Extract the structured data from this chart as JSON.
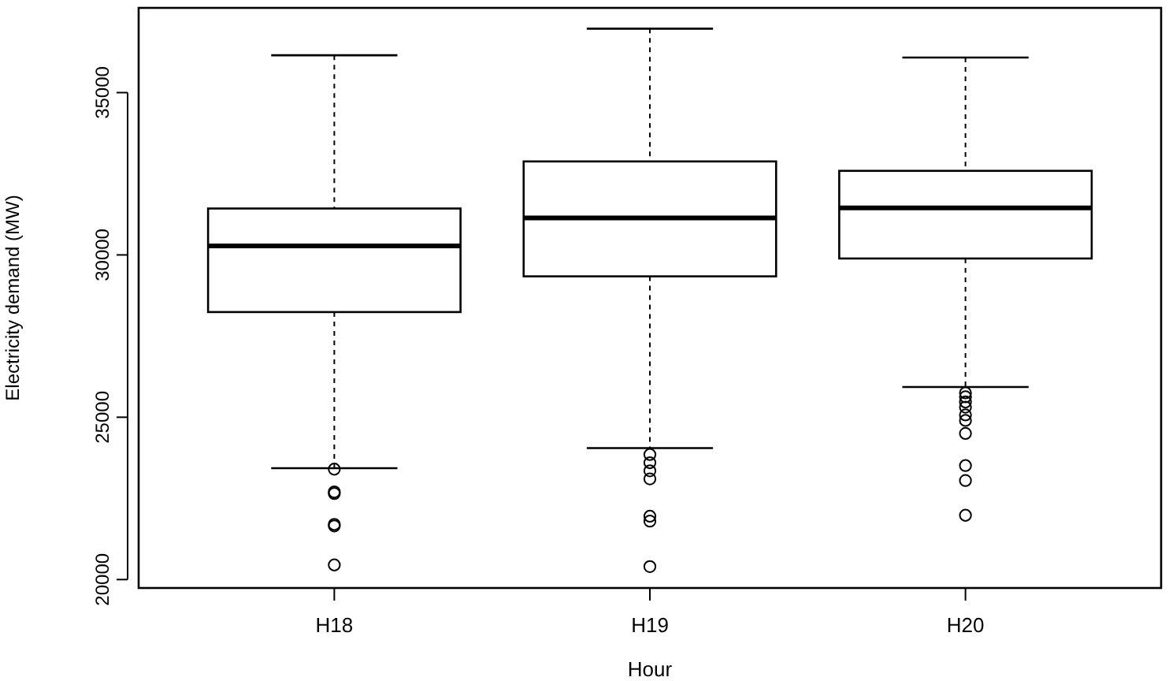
{
  "chart_data": {
    "type": "box",
    "xlabel": "Hour",
    "ylabel": "Electricity demand (MW)",
    "categories": [
      "H18",
      "H19",
      "H20"
    ],
    "ylim": [
      19740,
      37610
    ],
    "yticks": [
      20000,
      25000,
      30000,
      35000
    ],
    "marker": "circle",
    "grid": false,
    "boxes": [
      {
        "low": 23430,
        "q1": 28240,
        "median": 30280,
        "q3": 31430,
        "high": 36150,
        "outliers": [
          23400,
          22700,
          22650,
          21700,
          21650,
          20450
        ]
      },
      {
        "low": 24050,
        "q1": 29340,
        "median": 31140,
        "q3": 32880,
        "high": 36970,
        "outliers": [
          23850,
          23600,
          23350,
          23100,
          21950,
          21800,
          20400
        ]
      },
      {
        "low": 25930,
        "q1": 29890,
        "median": 31450,
        "q3": 32590,
        "high": 36080,
        "outliers": [
          25750,
          25630,
          25470,
          25310,
          25070,
          24900,
          24500,
          23510,
          23050,
          21980
        ]
      }
    ]
  }
}
